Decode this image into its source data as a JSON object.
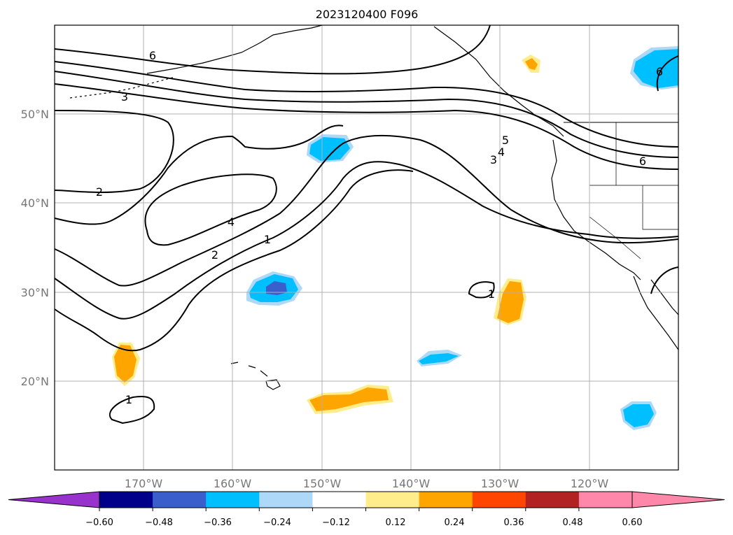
{
  "title": "2023120400 F096",
  "map": {
    "lat_labels": [
      "50°N",
      "40°N",
      "30°N",
      "20°N"
    ],
    "lon_labels": [
      "170°W",
      "160°W",
      "150°W",
      "140°W",
      "130°W",
      "120°W"
    ],
    "lat_range": [
      10,
      60
    ],
    "lon_range": [
      -180,
      -110
    ],
    "grid": true,
    "contour_color": "#000000",
    "contour_labels": [
      "6",
      "3",
      "2",
      "4",
      "2",
      "1",
      "5",
      "4",
      "3",
      "6",
      "1",
      "1",
      "6"
    ]
  },
  "colorbar": {
    "ticks": [
      "−0.60",
      "−0.48",
      "−0.36",
      "−0.24",
      "−0.12",
      "0.12",
      "0.24",
      "0.36",
      "0.48",
      "0.60"
    ],
    "colors": [
      "#9932cc",
      "#00008b",
      "#3a5fcd",
      "#00bfff",
      "#add8f7",
      "#ffffff",
      "#ffec8b",
      "#ffa500",
      "#ff4500",
      "#b22222",
      "#ff88aa",
      "#ff88aa"
    ],
    "extend": "both"
  },
  "shading_colors": {
    "neg_strong": "#3a5fcd",
    "neg_mid": "#00bfff",
    "neg_weak": "#add8f7",
    "pos_weak": "#ffec8b",
    "pos_mid": "#ffa500"
  }
}
